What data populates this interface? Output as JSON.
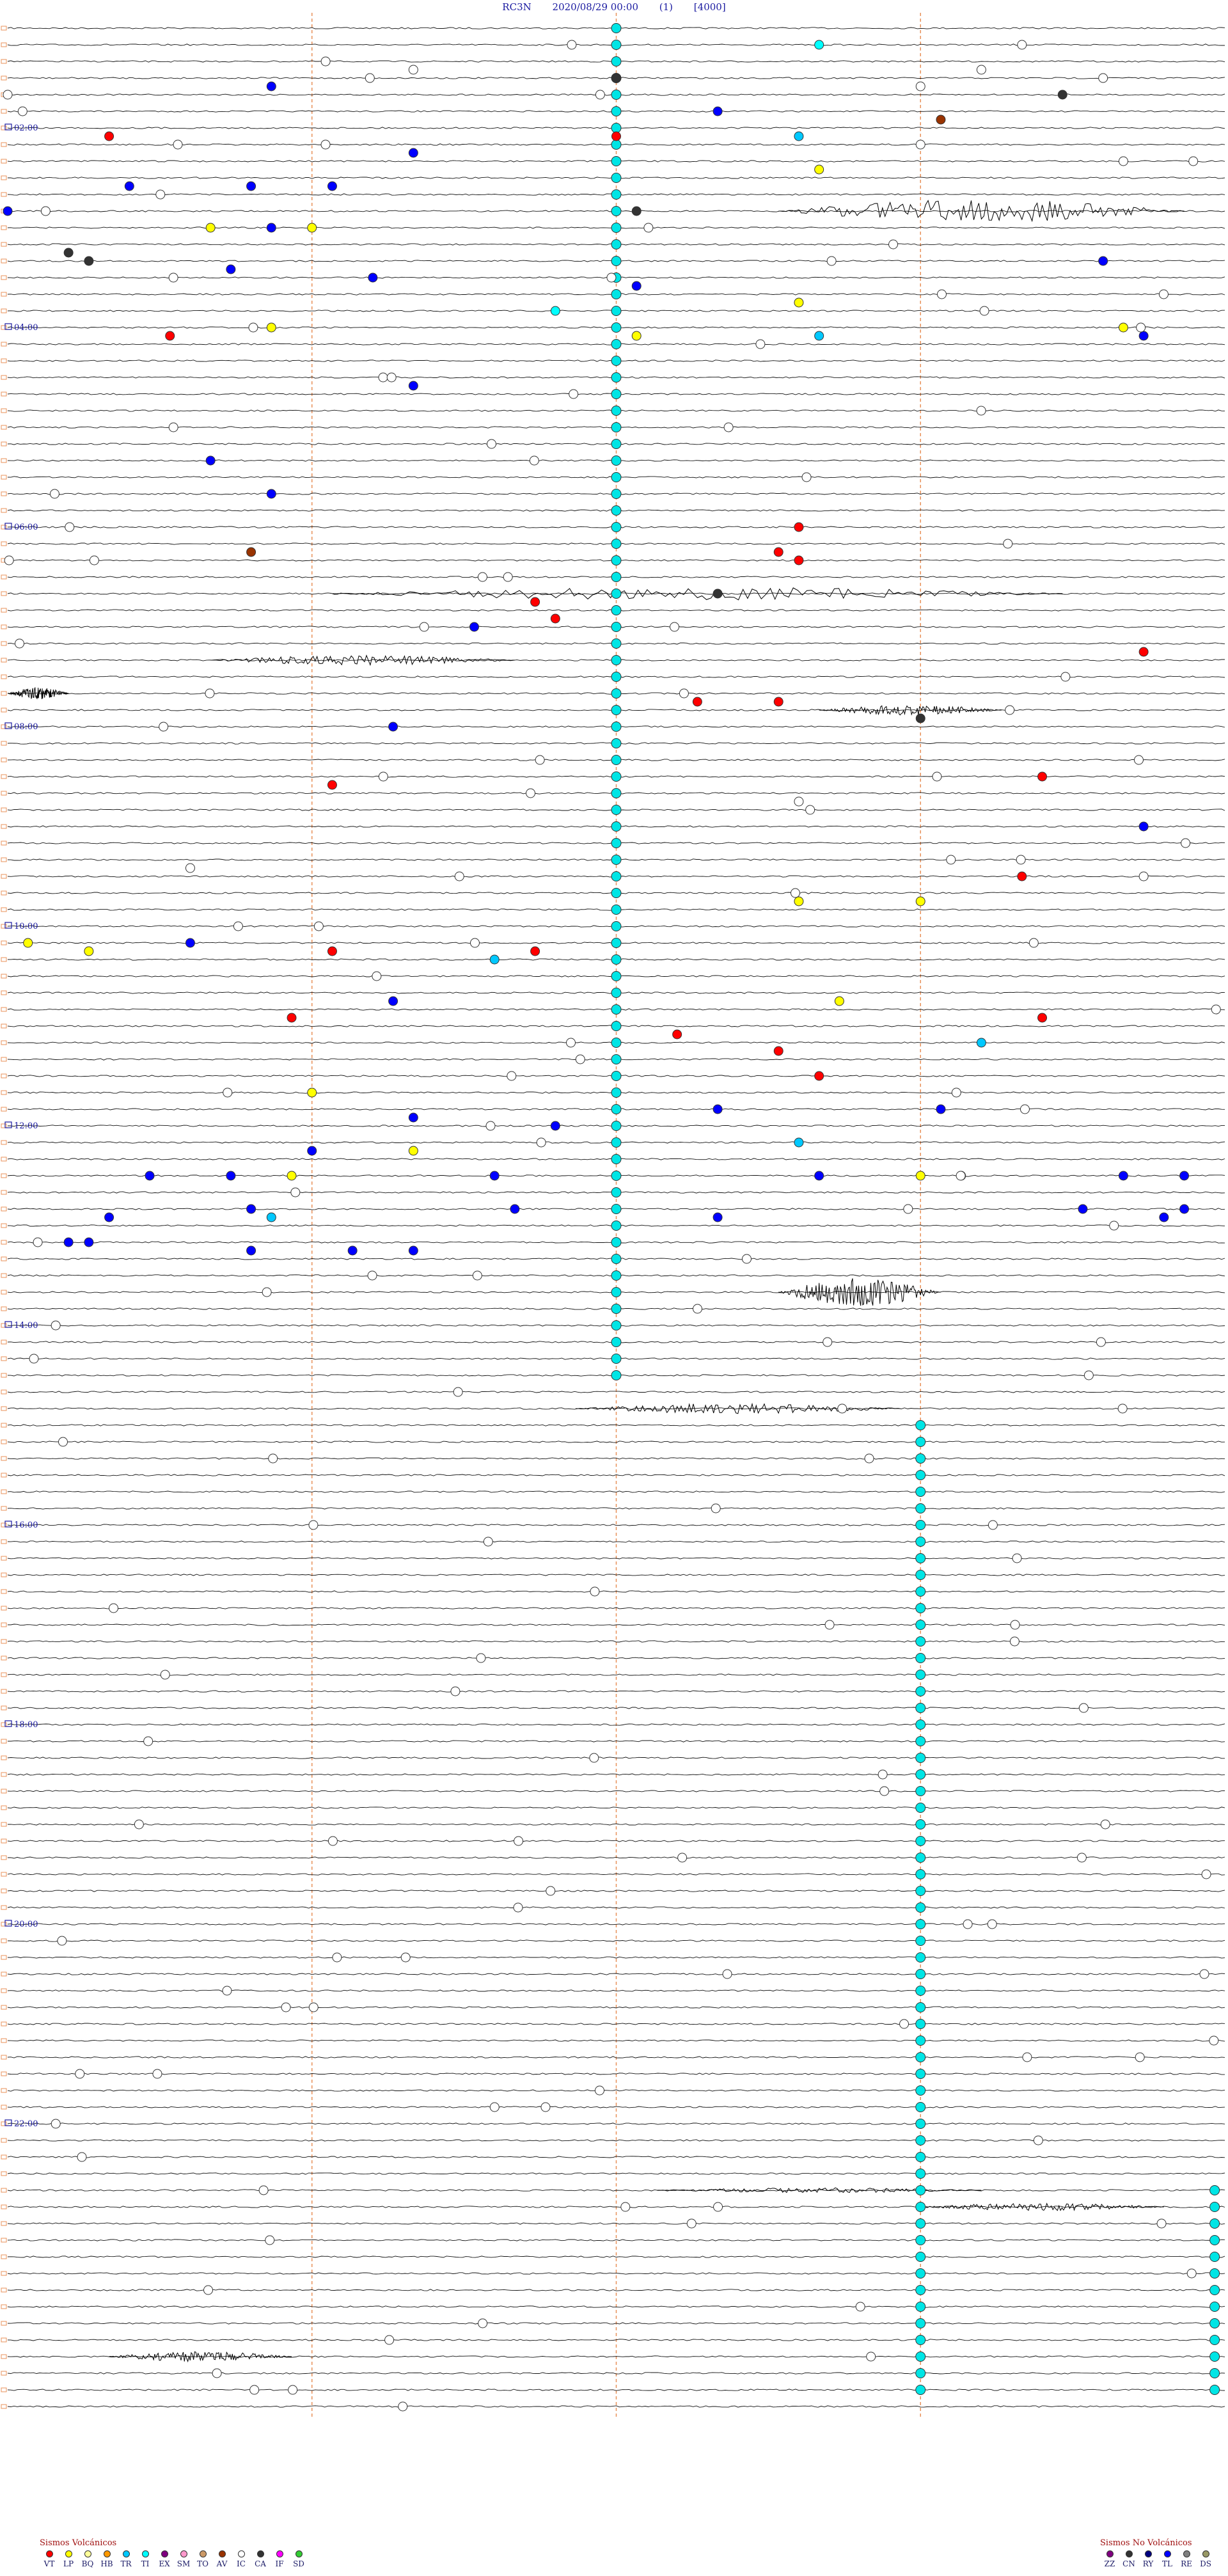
{
  "header": {
    "station": "RC3N",
    "datetime": "2020/08/29 00:00",
    "channel": "(1)",
    "scale": "[4000]"
  },
  "chart_data": {
    "type": "scatter",
    "description_free": true,
    "start_hour": 0,
    "hours": 24,
    "traces_per_hour": 12,
    "hour_labels": [
      "02:00",
      "04:00",
      "06:00",
      "08:00",
      "10:00",
      "12:00",
      "14:00",
      "16:00",
      "18:00",
      "20:00",
      "22:00"
    ],
    "hour_label_traces": [
      12,
      36,
      60,
      84,
      108,
      132,
      156,
      180,
      204,
      228,
      252
    ],
    "minute_gridlines": [
      15,
      30,
      45
    ],
    "event_colors": {
      "VT": "#ff0000",
      "LP": "#ffff00",
      "BQ": "#ffff99",
      "HB": "#ff9900",
      "TR": "#00c8ff",
      "TI": "#00ffff",
      "EX": "#800080",
      "SM": "#ff99cc",
      "TO": "#cc9966",
      "AV": "#993300",
      "IC": "#ffffff",
      "CA": "#333333",
      "IF": "#ff00ff",
      "SD": "#33cc33",
      "ZZ": "#800080",
      "CN": "#333333",
      "RY": "#000080",
      "TL": "#0000ff",
      "RE": "#808080",
      "DS": "#999966"
    },
    "events": [
      {
        "trace": 2,
        "minute": 40,
        "type": "TI"
      },
      {
        "trace": 2,
        "minute": 50,
        "type": "IC"
      },
      {
        "trace": 5,
        "minute": 20,
        "type": "IC"
      },
      {
        "trace": 5,
        "minute": 48,
        "type": "IC"
      },
      {
        "trace": 6,
        "minute": 30,
        "type": "CA"
      },
      {
        "trace": 6,
        "minute": 54,
        "type": "IC"
      },
      {
        "trace": 7,
        "minute": 13,
        "type": "TL"
      },
      {
        "trace": 7,
        "minute": 45,
        "type": "IC"
      },
      {
        "trace": 8,
        "minute": 0,
        "type": "IC"
      },
      {
        "trace": 8,
        "minute": 52,
        "type": "CA"
      },
      {
        "trace": 10,
        "minute": 35,
        "type": "TL"
      },
      {
        "trace": 11,
        "minute": 46,
        "type": "AV"
      },
      {
        "trace": 13,
        "minute": 5,
        "type": "VT"
      },
      {
        "trace": 13,
        "minute": 30,
        "type": "VT"
      },
      {
        "trace": 13,
        "minute": 39,
        "type": "TR"
      },
      {
        "trace": 14,
        "minute": 45,
        "type": "IC"
      },
      {
        "trace": 15,
        "minute": 20,
        "type": "TL"
      },
      {
        "trace": 16,
        "minute": 55,
        "type": "IC"
      },
      {
        "trace": 17,
        "minute": 40,
        "type": "LP"
      },
      {
        "trace": 19,
        "minute": 6,
        "type": "TL"
      },
      {
        "trace": 19,
        "minute": 12,
        "type": "TL"
      },
      {
        "trace": 19,
        "minute": 16,
        "type": "TL"
      },
      {
        "trace": 22,
        "minute": 0,
        "type": "TL"
      },
      {
        "trace": 22,
        "minute": 31,
        "type": "CA"
      },
      {
        "trace": 24,
        "minute": 10,
        "type": "LP"
      },
      {
        "trace": 24,
        "minute": 13,
        "type": "TL"
      },
      {
        "trace": 24,
        "minute": 15,
        "type": "LP"
      },
      {
        "trace": 27,
        "minute": 3,
        "type": "CA"
      },
      {
        "trace": 28,
        "minute": 4,
        "type": "CA"
      },
      {
        "trace": 28,
        "minute": 54,
        "type": "TL"
      },
      {
        "trace": 29,
        "minute": 11,
        "type": "TL"
      },
      {
        "trace": 30,
        "minute": 18,
        "type": "TL"
      },
      {
        "trace": 31,
        "minute": 31,
        "type": "TL"
      },
      {
        "trace": 33,
        "minute": 39,
        "type": "LP"
      },
      {
        "trace": 34,
        "minute": 27,
        "type": "TI"
      },
      {
        "trace": 36,
        "minute": 13,
        "type": "LP"
      },
      {
        "trace": 36,
        "minute": 55,
        "type": "LP"
      },
      {
        "trace": 37,
        "minute": 8,
        "type": "VT"
      },
      {
        "trace": 37,
        "minute": 31,
        "type": "LP"
      },
      {
        "trace": 37,
        "minute": 40,
        "type": "TR"
      },
      {
        "trace": 37,
        "minute": 56,
        "type": "TL"
      },
      {
        "trace": 43,
        "minute": 20,
        "type": "TL"
      },
      {
        "trace": 52,
        "minute": 10,
        "type": "TL"
      },
      {
        "trace": 56,
        "minute": 13,
        "type": "TL"
      },
      {
        "trace": 60,
        "minute": 39,
        "type": "VT"
      },
      {
        "trace": 63,
        "minute": 12,
        "type": "AV"
      },
      {
        "trace": 63,
        "minute": 38,
        "type": "VT"
      },
      {
        "trace": 64,
        "minute": 39,
        "type": "VT"
      },
      {
        "trace": 68,
        "minute": 35,
        "type": "CA"
      },
      {
        "trace": 69,
        "minute": 26,
        "type": "VT"
      },
      {
        "trace": 71,
        "minute": 27,
        "type": "VT"
      },
      {
        "trace": 72,
        "minute": 23,
        "type": "TL"
      },
      {
        "trace": 75,
        "minute": 56,
        "type": "VT"
      },
      {
        "trace": 81,
        "minute": 34,
        "type": "VT"
      },
      {
        "trace": 81,
        "minute": 38,
        "type": "VT"
      },
      {
        "trace": 83,
        "minute": 45,
        "type": "CA"
      },
      {
        "trace": 84,
        "minute": 19,
        "type": "TL"
      },
      {
        "trace": 90,
        "minute": 51,
        "type": "VT"
      },
      {
        "trace": 91,
        "minute": 16,
        "type": "VT"
      },
      {
        "trace": 93,
        "minute": 39,
        "type": "IC"
      },
      {
        "trace": 96,
        "minute": 56,
        "type": "TL"
      },
      {
        "trace": 101,
        "minute": 9,
        "type": "IC"
      },
      {
        "trace": 102,
        "minute": 50,
        "type": "VT"
      },
      {
        "trace": 102,
        "minute": 56,
        "type": "IC"
      },
      {
        "trace": 105,
        "minute": 39,
        "type": "LP"
      },
      {
        "trace": 105,
        "minute": 45,
        "type": "LP"
      },
      {
        "trace": 110,
        "minute": 1,
        "type": "LP"
      },
      {
        "trace": 110,
        "minute": 9,
        "type": "TL"
      },
      {
        "trace": 111,
        "minute": 4,
        "type": "LP"
      },
      {
        "trace": 111,
        "minute": 16,
        "type": "VT"
      },
      {
        "trace": 111,
        "minute": 26,
        "type": "VT"
      },
      {
        "trace": 112,
        "minute": 24,
        "type": "TR"
      },
      {
        "trace": 117,
        "minute": 19,
        "type": "TL"
      },
      {
        "trace": 117,
        "minute": 41,
        "type": "LP"
      },
      {
        "trace": 119,
        "minute": 14,
        "type": "VT"
      },
      {
        "trace": 119,
        "minute": 51,
        "type": "VT"
      },
      {
        "trace": 121,
        "minute": 33,
        "type": "VT"
      },
      {
        "trace": 122,
        "minute": 48,
        "type": "TR"
      },
      {
        "trace": 123,
        "minute": 38,
        "type": "VT"
      },
      {
        "trace": 126,
        "minute": 40,
        "type": "VT"
      },
      {
        "trace": 128,
        "minute": 15,
        "type": "LP"
      },
      {
        "trace": 130,
        "minute": 35,
        "type": "TL"
      },
      {
        "trace": 130,
        "minute": 46,
        "type": "TL"
      },
      {
        "trace": 131,
        "minute": 20,
        "type": "TL"
      },
      {
        "trace": 132,
        "minute": 27,
        "type": "TL"
      },
      {
        "trace": 134,
        "minute": 39,
        "type": "TR"
      },
      {
        "trace": 135,
        "minute": 15,
        "type": "TL"
      },
      {
        "trace": 135,
        "minute": 20,
        "type": "LP"
      },
      {
        "trace": 138,
        "minute": 7,
        "type": "TL"
      },
      {
        "trace": 138,
        "minute": 11,
        "type": "TL"
      },
      {
        "trace": 138,
        "minute": 14,
        "type": "LP"
      },
      {
        "trace": 138,
        "minute": 24,
        "type": "TL"
      },
      {
        "trace": 138,
        "minute": 55,
        "type": "TL"
      },
      {
        "trace": 138,
        "minute": 58,
        "type": "TL"
      },
      {
        "trace": 138,
        "minute": 40,
        "type": "TL"
      },
      {
        "trace": 138,
        "minute": 45,
        "type": "LP"
      },
      {
        "trace": 138,
        "minute": 47,
        "type": "LP"
      },
      {
        "trace": 142,
        "minute": 12,
        "type": "TL"
      },
      {
        "trace": 142,
        "minute": 25,
        "type": "TL"
      },
      {
        "trace": 142,
        "minute": 53,
        "type": "TL"
      },
      {
        "trace": 142,
        "minute": 58,
        "type": "TL"
      },
      {
        "trace": 143,
        "minute": 13,
        "type": "TR"
      },
      {
        "trace": 143,
        "minute": 5,
        "type": "TL"
      },
      {
        "trace": 143,
        "minute": 35,
        "type": "TL"
      },
      {
        "trace": 143,
        "minute": 57,
        "type": "TL"
      },
      {
        "trace": 146,
        "minute": 3,
        "type": "TL"
      },
      {
        "trace": 146,
        "minute": 4,
        "type": "TL"
      },
      {
        "trace": 147,
        "minute": 12,
        "type": "TL"
      },
      {
        "trace": 147,
        "minute": 17,
        "type": "TL"
      },
      {
        "trace": 147,
        "minute": 20,
        "type": "TL"
      }
    ],
    "legend_volcanic": {
      "title": "Sismos Volcánicos",
      "codes": [
        "VT",
        "LP",
        "BQ",
        "HB",
        "TR",
        "TI",
        "EX",
        "SM",
        "TO",
        "AV",
        "IC",
        "CA",
        "IF",
        "SD"
      ]
    },
    "legend_nonvolcanic": {
      "title": "Sismos No Volcánicos",
      "codes": [
        "ZZ",
        "CN",
        "RY",
        "TL",
        "RE",
        "DS"
      ]
    }
  }
}
